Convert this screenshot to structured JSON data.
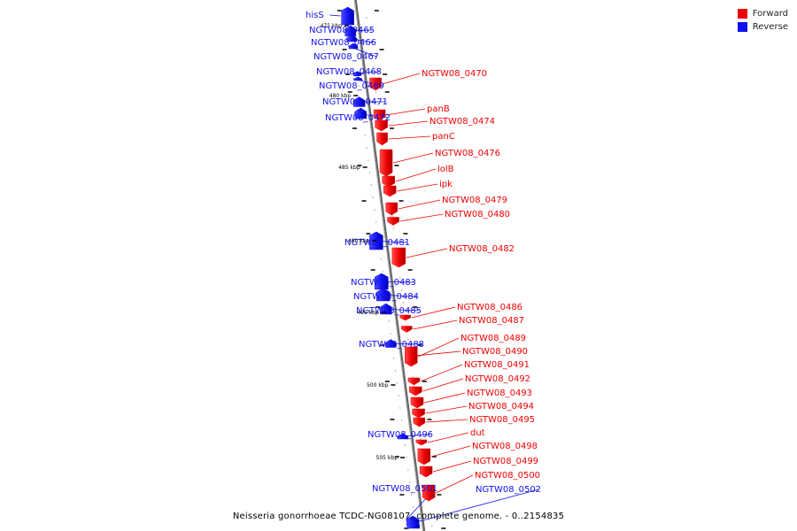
{
  "legend": {
    "forward_label": "Forward",
    "reverse_label": "Reverse",
    "forward_color": "#ee0000",
    "reverse_color": "#1111ee"
  },
  "caption": "Neisseria gonorrhoeae TCDC-NG08107, complete genome. - 0..2154835",
  "scale_labels": [
    "475 kbp",
    "480 kbp",
    "485 kbp",
    "490 kbp",
    "495 kbp",
    "500 kbp",
    "505 kbp"
  ],
  "genes": [
    {
      "name": "hisS",
      "strand": "reverse"
    },
    {
      "name": "NGTW08_0465",
      "strand": "reverse"
    },
    {
      "name": "NGTW08_0466",
      "strand": "reverse"
    },
    {
      "name": "NGTW08_0467",
      "strand": "reverse"
    },
    {
      "name": "NGTW08_0468",
      "strand": "reverse"
    },
    {
      "name": "NGTW08_0469",
      "strand": "reverse"
    },
    {
      "name": "NGTW08_0470",
      "strand": "forward"
    },
    {
      "name": "NGTW08_0471",
      "strand": "reverse"
    },
    {
      "name": "NGTW08_0472",
      "strand": "reverse"
    },
    {
      "name": "panB",
      "strand": "forward"
    },
    {
      "name": "NGTW08_0474",
      "strand": "forward"
    },
    {
      "name": "panC",
      "strand": "forward"
    },
    {
      "name": "NGTW08_0476",
      "strand": "forward"
    },
    {
      "name": "lolB",
      "strand": "forward"
    },
    {
      "name": "ipk",
      "strand": "forward"
    },
    {
      "name": "NGTW08_0479",
      "strand": "forward"
    },
    {
      "name": "NGTW08_0480",
      "strand": "forward"
    },
    {
      "name": "NGTW08_0481",
      "strand": "reverse"
    },
    {
      "name": "NGTW08_0482",
      "strand": "forward"
    },
    {
      "name": "NGTW08_0483",
      "strand": "reverse"
    },
    {
      "name": "NGTW08_0484",
      "strand": "reverse"
    },
    {
      "name": "NGTW08_0485",
      "strand": "reverse"
    },
    {
      "name": "NGTW08_0486",
      "strand": "forward"
    },
    {
      "name": "NGTW08_0487",
      "strand": "forward"
    },
    {
      "name": "NGTW08_0488",
      "strand": "reverse"
    },
    {
      "name": "NGTW08_0489",
      "strand": "forward"
    },
    {
      "name": "NGTW08_0490",
      "strand": "forward"
    },
    {
      "name": "NGTW08_0491",
      "strand": "forward"
    },
    {
      "name": "NGTW08_0492",
      "strand": "forward"
    },
    {
      "name": "NGTW08_0493",
      "strand": "forward"
    },
    {
      "name": "NGTW08_0494",
      "strand": "forward"
    },
    {
      "name": "NGTW08_0495",
      "strand": "forward"
    },
    {
      "name": "NGTW08_0496",
      "strand": "reverse"
    },
    {
      "name": "dut",
      "strand": "forward"
    },
    {
      "name": "NGTW08_0498",
      "strand": "forward"
    },
    {
      "name": "NGTW08_0499",
      "strand": "forward"
    },
    {
      "name": "NGTW08_0500",
      "strand": "forward"
    },
    {
      "name": "NGTW08_0501",
      "strand": "reverse"
    },
    {
      "name": "NGTW08_0502",
      "strand": "reverse"
    }
  ]
}
